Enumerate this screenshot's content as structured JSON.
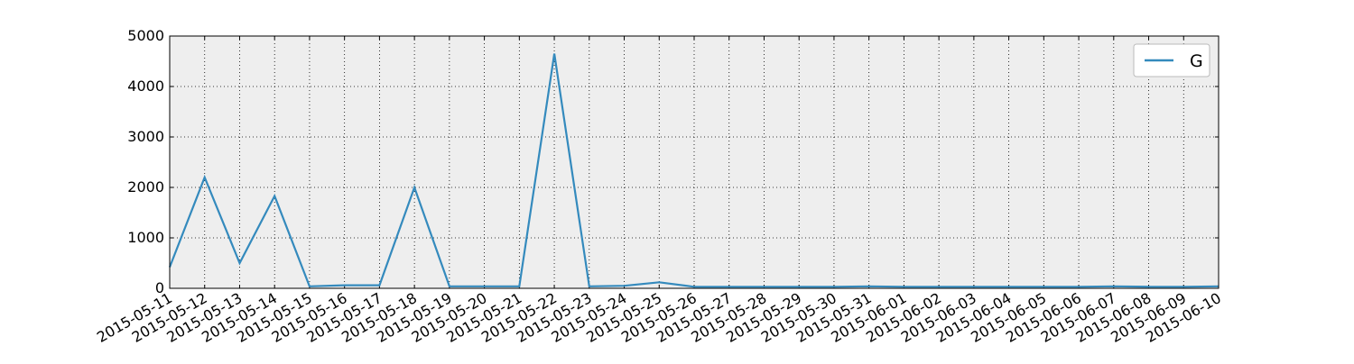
{
  "chart_data": {
    "type": "line",
    "title": "",
    "xlabel": "",
    "ylabel": "",
    "x": [
      "2015-05-11",
      "2015-05-12",
      "2015-05-13",
      "2015-05-14",
      "2015-05-15",
      "2015-05-16",
      "2015-05-17",
      "2015-05-18",
      "2015-05-19",
      "2015-05-20",
      "2015-05-21",
      "2015-05-22",
      "2015-05-23",
      "2015-05-24",
      "2015-05-25",
      "2015-05-26",
      "2015-05-27",
      "2015-05-28",
      "2015-05-29",
      "2015-05-30",
      "2015-05-31",
      "2015-06-01",
      "2015-06-02",
      "2015-06-03",
      "2015-06-04",
      "2015-06-05",
      "2015-06-06",
      "2015-06-07",
      "2015-06-08",
      "2015-06-09",
      "2015-06-10"
    ],
    "yticks": [
      0,
      1000,
      2000,
      3000,
      4000,
      5000
    ],
    "ylim": [
      0,
      5000
    ],
    "grid": true,
    "legend_position": "top-right",
    "series": [
      {
        "name": "G",
        "color": "#348abd",
        "values": [
          420,
          2200,
          500,
          1830,
          40,
          60,
          60,
          2000,
          40,
          40,
          40,
          4650,
          40,
          50,
          120,
          30,
          30,
          30,
          30,
          30,
          40,
          30,
          30,
          30,
          30,
          30,
          30,
          40,
          30,
          30,
          40
        ]
      }
    ]
  }
}
